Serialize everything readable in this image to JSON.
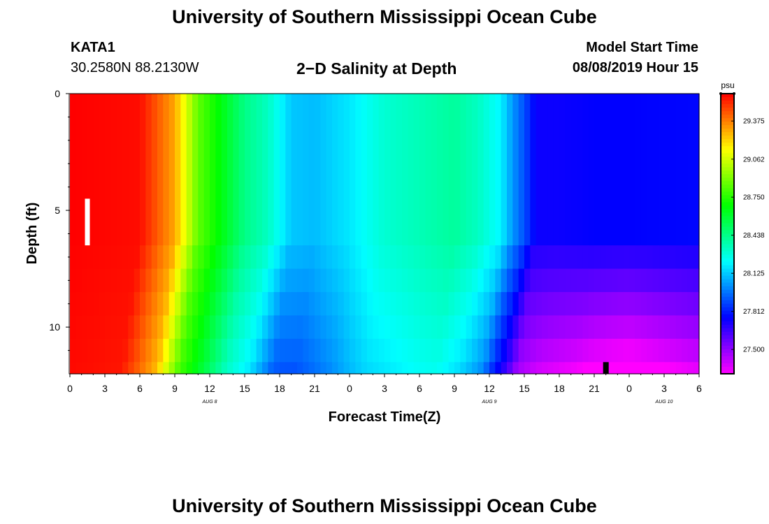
{
  "header": {
    "title": "University of Southern Mississippi Ocean Cube",
    "station_id": "KATA1",
    "station_coords": "30.2580N 88.2130W",
    "plot_title": "2−D Salinity at Depth",
    "model_label": "Model Start Time",
    "model_time": "08/08/2019 Hour 15"
  },
  "footer": {
    "title": "University of Southern Mississippi Ocean Cube"
  },
  "colors": {
    "colormap": [
      "#ff00ff",
      "#8000ff",
      "#0000ff",
      "#0080ff",
      "#00ffff",
      "#00ff80",
      "#00ff00",
      "#80ff00",
      "#ffff00",
      "#ff8000",
      "#ff0000"
    ],
    "background": "#ffffff",
    "marker": "#000000",
    "marker_alt": "#ffffff"
  },
  "chart_data": {
    "type": "heatmap",
    "title": "2−D Salinity at Depth",
    "xlabel": "Forecast Time(Z)",
    "ylabel": "Depth (ft)",
    "x_range_hours": [
      0,
      54
    ],
    "x_ticks": [
      {
        "h": 0,
        "label": "0"
      },
      {
        "h": 3,
        "label": "3"
      },
      {
        "h": 6,
        "label": "6"
      },
      {
        "h": 9,
        "label": "9"
      },
      {
        "h": 12,
        "label": "12"
      },
      {
        "h": 15,
        "label": "15"
      },
      {
        "h": 18,
        "label": "18"
      },
      {
        "h": 21,
        "label": "21"
      },
      {
        "h": 24,
        "label": "0"
      },
      {
        "h": 27,
        "label": "3"
      },
      {
        "h": 30,
        "label": "6"
      },
      {
        "h": 33,
        "label": "9"
      },
      {
        "h": 36,
        "label": "12"
      },
      {
        "h": 39,
        "label": "15"
      },
      {
        "h": 42,
        "label": "18"
      },
      {
        "h": 45,
        "label": "21"
      },
      {
        "h": 48,
        "label": "0"
      },
      {
        "h": 51,
        "label": "3"
      },
      {
        "h": 54,
        "label": "6"
      }
    ],
    "date_labels": [
      {
        "h": 12,
        "label": "AUG 8"
      },
      {
        "h": 36,
        "label": "AUG 9"
      },
      {
        "h": 51,
        "label": "AUG 10"
      }
    ],
    "y_range_ft": [
      0,
      12
    ],
    "y_ticks": [
      {
        "v": 0,
        "label": "0"
      },
      {
        "v": 5,
        "label": "5"
      },
      {
        "v": 10,
        "label": "10"
      }
    ],
    "depth_levels_ft": [
      6.5,
      7.5,
      8.5,
      9.5,
      10.5,
      11.5,
      12
    ],
    "colorbar": {
      "unit": "psu",
      "range": [
        27.3,
        29.6
      ],
      "ticks": [
        27.5,
        27.812,
        28.125,
        28.438,
        28.75,
        29.062,
        29.375
      ],
      "tick_labels": [
        "27.500",
        "27.812",
        "28.125",
        "28.438",
        "28.750",
        "29.062",
        "29.375"
      ]
    },
    "time_profile": {
      "hours": [
        0,
        6,
        9,
        11,
        13,
        15,
        17,
        19,
        21,
        24,
        27,
        30,
        33,
        35,
        37,
        38,
        39,
        40,
        42,
        45,
        48,
        54
      ],
      "salinity": [
        29.6,
        29.58,
        29.3,
        28.85,
        28.65,
        28.44,
        28.33,
        28.12,
        28.1,
        28.18,
        28.3,
        28.35,
        28.4,
        28.33,
        28.2,
        28.03,
        27.9,
        27.74,
        27.74,
        27.76,
        27.76,
        27.77
      ]
    },
    "depth_effect": {
      "hours": [
        0,
        6,
        10,
        13,
        15,
        18,
        21,
        24,
        30,
        35,
        38,
        40,
        45,
        48,
        54
      ],
      "offset": [
        -0.01,
        -0.02,
        -0.05,
        -0.1,
        -0.14,
        -0.2,
        -0.18,
        -0.15,
        -0.14,
        -0.18,
        -0.25,
        -0.35,
        -0.48,
        -0.52,
        -0.42
      ]
    },
    "markers": [
      {
        "label": "white bar",
        "h": 1.5,
        "depth_top_ft": 4.5,
        "depth_bottom_ft": 6.5
      },
      {
        "label": "black bar",
        "h": 46,
        "depth_top_ft": 11.5,
        "depth_bottom_ft": 12
      }
    ]
  }
}
